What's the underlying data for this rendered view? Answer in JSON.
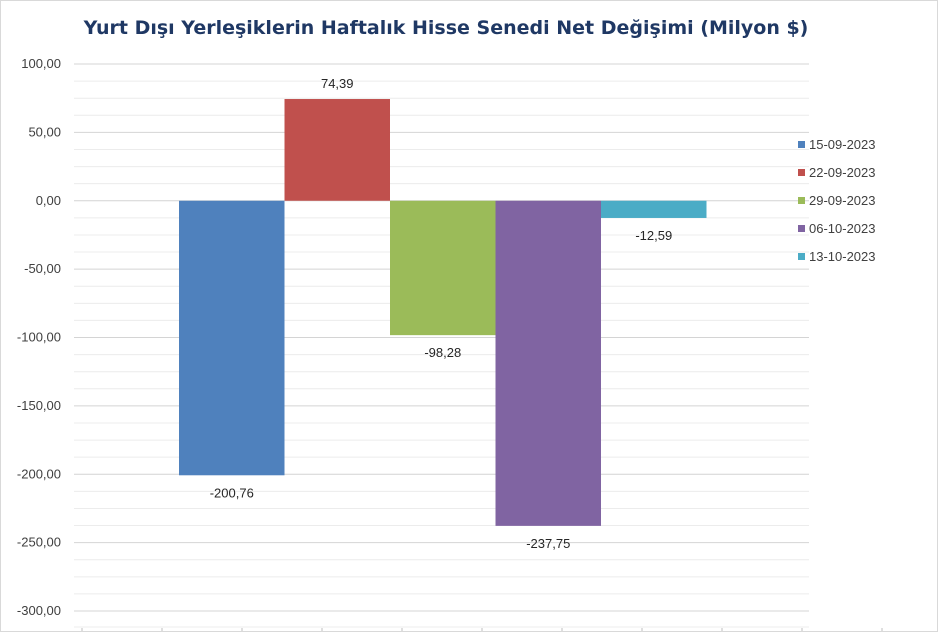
{
  "chart_data": {
    "type": "bar",
    "title": "Yurt Dışı Yerleşiklerin Haftalık Hisse Senedi Net Değişimi (Milyon $)",
    "xlabel": "",
    "ylabel": "",
    "ylim": [
      -300,
      100
    ],
    "y_ticks": [
      "100,00",
      "50,00",
      "0,00",
      "-50,00",
      "-100,00",
      "-150,00",
      "-200,00",
      "-250,00",
      "-300,00"
    ],
    "grid": true,
    "legend_position": "right",
    "series": [
      {
        "name": "15-09-2023",
        "value": -200.76,
        "label": "-200,76",
        "color": "#4f81bd"
      },
      {
        "name": "22-09-2023",
        "value": 74.39,
        "label": "74,39",
        "color": "#c0504d"
      },
      {
        "name": "29-09-2023",
        "value": -98.28,
        "label": "-98,28",
        "color": "#9bbb59"
      },
      {
        "name": "06-10-2023",
        "value": -237.75,
        "label": "-237,75",
        "color": "#8064a2"
      },
      {
        "name": "13-10-2023",
        "value": -12.59,
        "label": "-12,59",
        "color": "#4bacc6"
      }
    ]
  }
}
